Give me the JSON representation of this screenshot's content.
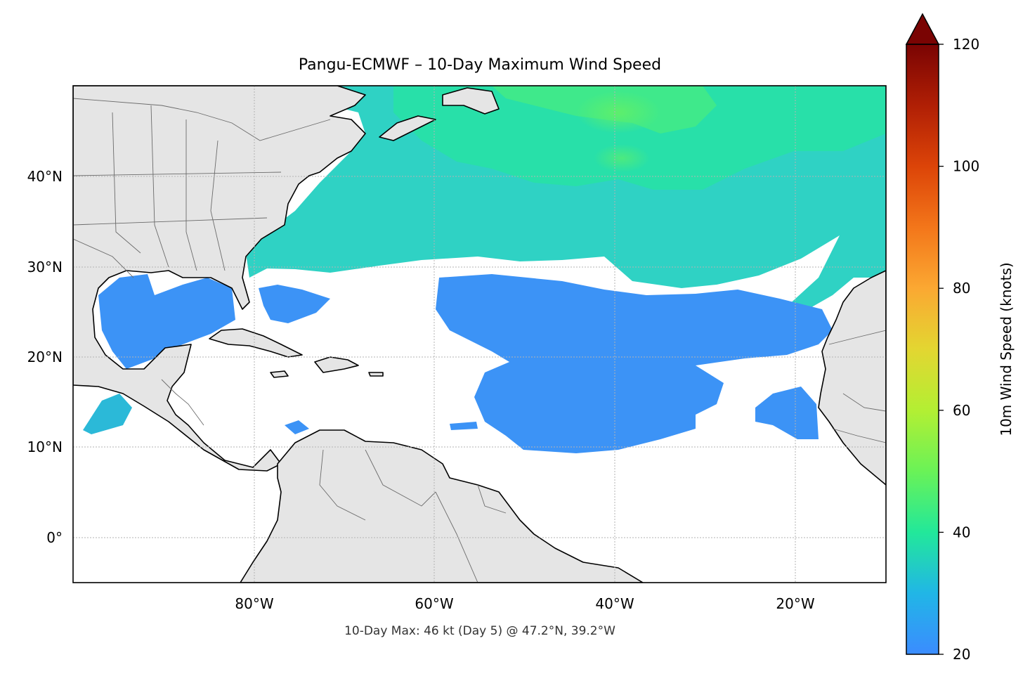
{
  "title": "Pangu-ECMWF – 10-Day Maximum Wind Speed",
  "footer": "10-Day Max: 46 kt (Day 5) @ 47.2°N, 39.2°W",
  "map": {
    "lon_range": [
      -100,
      -10
    ],
    "lat_range": [
      -5,
      50
    ],
    "lon_ticks": [
      {
        "value": -80,
        "label": "80°W"
      },
      {
        "value": -60,
        "label": "60°W"
      },
      {
        "value": -40,
        "label": "40°W"
      },
      {
        "value": -20,
        "label": "20°W"
      }
    ],
    "lat_ticks": [
      {
        "value": 40,
        "label": "40°N"
      },
      {
        "value": 30,
        "label": "30°N"
      },
      {
        "value": 20,
        "label": "20°N"
      },
      {
        "value": 10,
        "label": "10°N"
      },
      {
        "value": 0,
        "label": "0°"
      }
    ],
    "land_color": "#e5e5e5",
    "gridlines": true
  },
  "colorbar": {
    "label": "10m Wind Speed (knots)",
    "min": 20,
    "max": 120,
    "extend": "max",
    "ticks": [
      {
        "value": 20,
        "label": "20"
      },
      {
        "value": 40,
        "label": "40"
      },
      {
        "value": 60,
        "label": "60"
      },
      {
        "value": 80,
        "label": "80"
      },
      {
        "value": 100,
        "label": "100"
      },
      {
        "value": 120,
        "label": "120"
      }
    ],
    "colors": [
      "#3b8cff",
      "#1ec8d8",
      "#22e89a",
      "#9af534",
      "#e3d631",
      "#fba832",
      "#ee5a14",
      "#c22405",
      "#7a0403"
    ]
  }
}
